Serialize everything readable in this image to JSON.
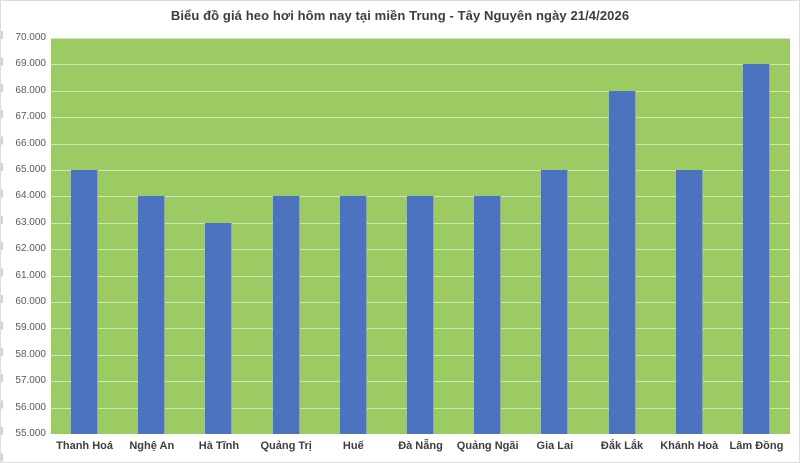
{
  "title": "Biểu đồ giá heo hơi hôm nay tại miền Trung - Tây Nguyên ngày 21/4/2026",
  "chart_data": {
    "type": "bar",
    "title": "Biểu đồ giá heo hơi hôm nay tại miền Trung - Tây Nguyên ngày 21/4/2026",
    "categories": [
      "Thanh Hoá",
      "Nghệ An",
      "Hà Tĩnh",
      "Quảng Trị",
      "Huế",
      "Đà Nẵng",
      "Quảng Ngãi",
      "Gia Lai",
      "Đắk Lắk",
      "Khánh Hoà",
      "Lâm Đồng"
    ],
    "values": [
      65000,
      64000,
      63000,
      64000,
      64000,
      64000,
      64000,
      65000,
      68000,
      65000,
      69000
    ],
    "xlabel": "",
    "ylabel": "",
    "ylim": [
      55000,
      70000
    ],
    "ytick_step": 1000,
    "ytick_labels": [
      "70.000",
      "69.000",
      "68.000",
      "67.000",
      "66.000",
      "65.000",
      "64.000",
      "63.000",
      "62.000",
      "61.000",
      "60.000",
      "59.000",
      "58.000",
      "57.000",
      "56.000",
      "55.000"
    ],
    "grid": true,
    "legend": false
  },
  "colors": {
    "bar": "#4c73c0",
    "plot_background": "#9bcb62",
    "gridline": "rgba(255,255,255,0.55)",
    "title_text": "#3d3d3d",
    "y_axis_text": "#595959",
    "x_axis_text": "#3d3d3d",
    "page_background": "#ffffff",
    "border": "#dcdcdc"
  }
}
